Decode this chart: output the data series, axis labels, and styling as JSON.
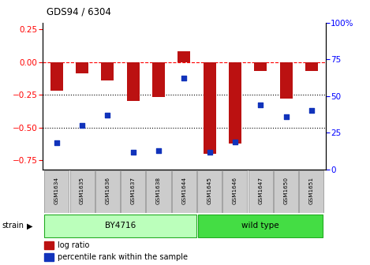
{
  "title": "GDS94 / 6304",
  "samples": [
    "GSM1634",
    "GSM1635",
    "GSM1636",
    "GSM1637",
    "GSM1638",
    "GSM1644",
    "GSM1645",
    "GSM1646",
    "GSM1647",
    "GSM1650",
    "GSM1651"
  ],
  "log_ratio": [
    -0.22,
    -0.09,
    -0.14,
    -0.3,
    -0.27,
    0.08,
    -0.7,
    -0.62,
    -0.07,
    -0.28,
    -0.07
  ],
  "percentile_rank": [
    18,
    30,
    37,
    12,
    13,
    62,
    12,
    19,
    44,
    36,
    40
  ],
  "bar_color": "#bb1111",
  "dot_color": "#1133bb",
  "ylim_left": [
    -0.82,
    0.3
  ],
  "ylim_right": [
    0,
    100
  ],
  "yticks_left": [
    0.25,
    0.0,
    -0.25,
    -0.5,
    -0.75
  ],
  "yticks_right": [
    0,
    25,
    50,
    75,
    100
  ],
  "dotted_lines": [
    -0.25,
    -0.5
  ],
  "n_by4716": 6,
  "n_wildtype": 5,
  "strain_label": "strain",
  "by4716_label": "BY4716",
  "wildtype_label": "wild type",
  "by4716_color": "#bbffbb",
  "wildtype_color": "#44dd44",
  "strain_border": "#22aa22",
  "legend_log": "log ratio",
  "legend_pct": "percentile rank within the sample",
  "bar_width": 0.5,
  "dot_size": 16
}
